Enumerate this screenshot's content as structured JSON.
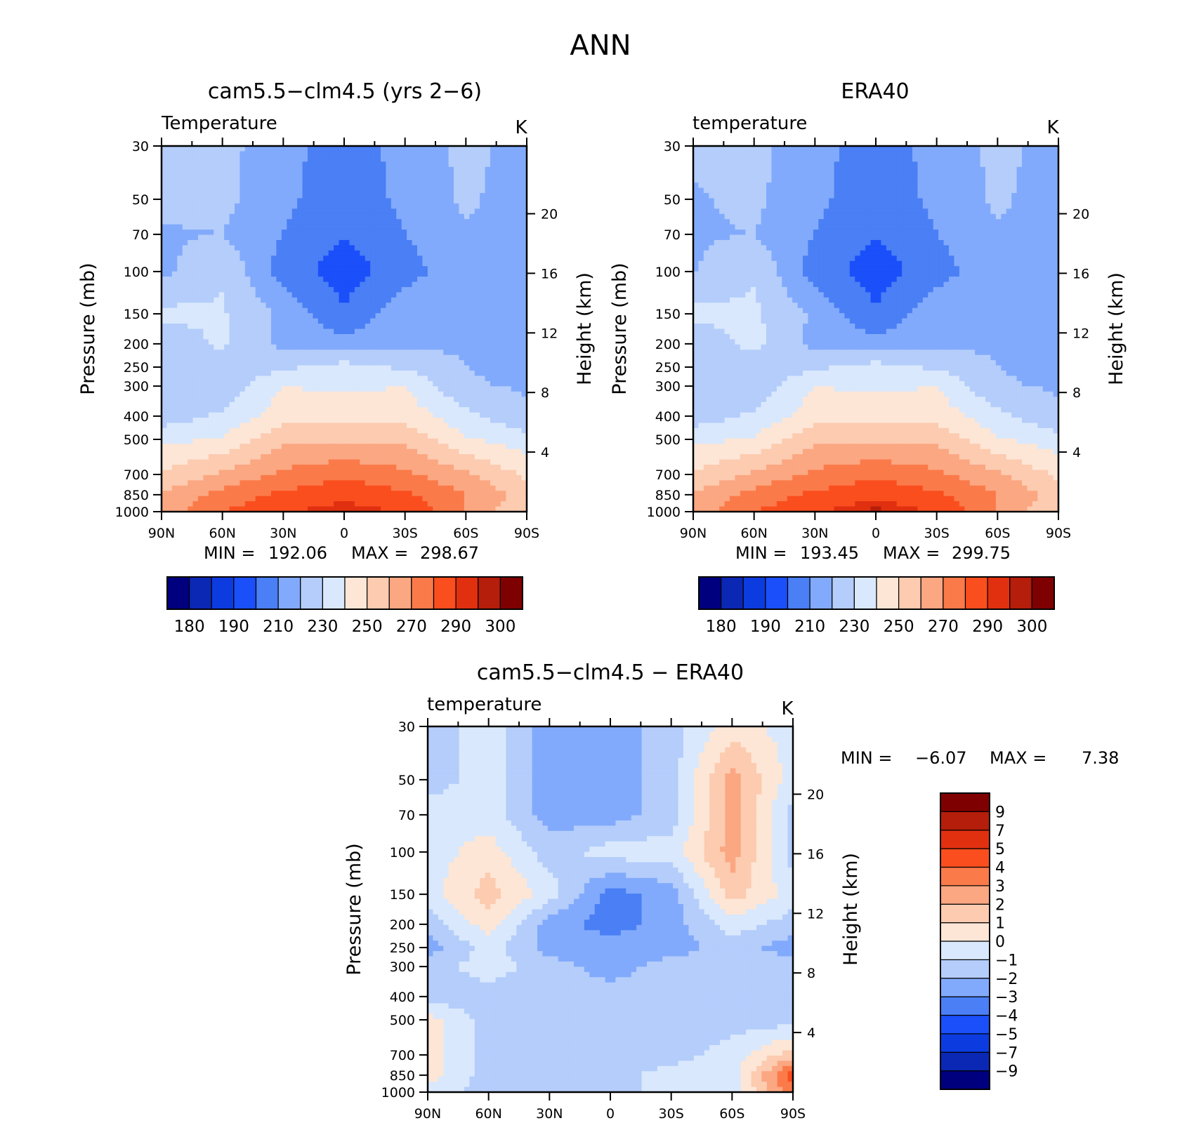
{
  "figure": {
    "title": "ANN",
    "y_label_left": "Pressure (mb)",
    "y_label_right": "Height (km)",
    "pressure_ticks": [
      "30",
      "50",
      "70",
      "100",
      "150",
      "200",
      "250",
      "300",
      "400",
      "500",
      "700",
      "850",
      "1000"
    ],
    "height_ticks": [
      "20",
      "16",
      "12",
      "8",
      "4"
    ],
    "lat_ticks": [
      "90N",
      "60N",
      "30N",
      "0",
      "30S",
      "60S",
      "90S"
    ]
  },
  "panels": {
    "model": {
      "title": "cam5.5−clm4.5 (yrs 2−6)",
      "variable": "Temperature",
      "units": "K",
      "min_label": "MIN =",
      "min_value": "192.06",
      "max_label": "MAX =",
      "max_value": "298.67"
    },
    "obs": {
      "title": "ERA40",
      "variable": "temperature",
      "units": "K",
      "min_label": "MIN =",
      "min_value": "193.45",
      "max_label": "MAX =",
      "max_value": "299.75"
    },
    "diff": {
      "title": "cam5.5−clm4.5 − ERA40",
      "variable": "temperature",
      "units": "K",
      "min_label": "MIN =",
      "min_value": "−6.07",
      "max_label": "MAX =",
      "max_value": "7.38"
    }
  },
  "colorbars": {
    "temperature": {
      "colors": [
        "#00007f",
        "#0a28b4",
        "#0c3ce0",
        "#1a4ffa",
        "#4a7ff5",
        "#82aafc",
        "#b4cdfb",
        "#d9e8fc",
        "#fde6d6",
        "#fccbb0",
        "#fba782",
        "#fb7a4a",
        "#fa4e1e",
        "#e03010",
        "#b41e0a",
        "#7f0000"
      ],
      "labels": [
        "180",
        "190",
        "210",
        "230",
        "250",
        "270",
        "290",
        "300"
      ]
    },
    "difference": {
      "colors": [
        "#00007f",
        "#0a28b4",
        "#0c3ce0",
        "#1a4ffa",
        "#4a7ff5",
        "#82aafc",
        "#b4cdfb",
        "#d9e8fc",
        "#fde6d6",
        "#fccbb0",
        "#fba782",
        "#fb7a4a",
        "#fa4e1e",
        "#e03010",
        "#b41e0a",
        "#7f0000"
      ],
      "labels": [
        "−9",
        "−7",
        "−5",
        "−4",
        "−3",
        "−2",
        "−1",
        "0",
        "1",
        "2",
        "3",
        "4",
        "5",
        "7",
        "9"
      ]
    }
  },
  "chart_data": [
    {
      "type": "heatmap",
      "title": "cam5.5−clm4.5 (yrs 2−6)",
      "subtitle": "Temperature",
      "units": "K",
      "x": [
        90,
        60,
        30,
        0,
        -30,
        -60,
        -90
      ],
      "xlabel_ticks": [
        "90N",
        "60N",
        "30N",
        "0",
        "30S",
        "60S",
        "90S"
      ],
      "y": [
        30,
        50,
        70,
        100,
        150,
        200,
        250,
        300,
        400,
        500,
        700,
        850,
        1000
      ],
      "ylabel": "Pressure (mb)",
      "y2label": "Height (km)",
      "y2_ticks": [
        20,
        16,
        12,
        8,
        4
      ],
      "z_rows": [
        [
          228,
          224,
          212,
          207,
          212,
          223,
          216
        ],
        [
          222,
          223,
          212,
          205,
          212,
          222,
          214
        ],
        [
          219,
          220,
          210,
          200,
          210,
          219,
          213
        ],
        [
          217,
          229,
          205,
          195,
          205,
          218,
          213
        ],
        [
          233,
          231,
          218,
          201,
          218,
          220,
          214
        ],
        [
          223,
          232,
          217,
          214,
          217,
          219,
          214
        ],
        [
          221,
          224,
          228,
          234,
          228,
          220,
          218
        ],
        [
          221,
          222,
          240,
          238,
          240,
          221,
          219
        ],
        [
          224,
          232,
          246,
          248,
          246,
          233,
          222
        ],
        [
          237,
          241,
          258,
          258,
          258,
          241,
          234
        ],
        [
          251,
          262,
          272,
          278,
          272,
          262,
          248
        ],
        [
          261,
          274,
          282,
          287,
          282,
          270,
          255
        ],
        [
          264,
          280,
          288,
          295,
          288,
          270,
          250
        ]
      ],
      "min": 192.06,
      "max": 298.67
    },
    {
      "type": "heatmap",
      "title": "ERA40",
      "subtitle": "temperature",
      "units": "K",
      "x": [
        90,
        60,
        30,
        0,
        -30,
        -60,
        -90
      ],
      "xlabel_ticks": [
        "90N",
        "60N",
        "30N",
        "0",
        "30S",
        "60S",
        "90S"
      ],
      "y": [
        30,
        50,
        70,
        100,
        150,
        200,
        250,
        300,
        400,
        500,
        700,
        850,
        1000
      ],
      "ylabel": "Pressure (mb)",
      "y2label": "Height (km)",
      "y2_ticks": [
        20,
        16,
        12,
        8,
        4
      ],
      "z_rows": [
        [
          222,
          224,
          212,
          207,
          212,
          223,
          216
        ],
        [
          219,
          222,
          212,
          205,
          212,
          222,
          214
        ],
        [
          219,
          220,
          210,
          200,
          210,
          219,
          213
        ],
        [
          219,
          229,
          205,
          195,
          205,
          218,
          213
        ],
        [
          233,
          232,
          218,
          201,
          218,
          220,
          214
        ],
        [
          223,
          233,
          217,
          214,
          217,
          219,
          214
        ],
        [
          221,
          224,
          228,
          234,
          228,
          220,
          218
        ],
        [
          221,
          222,
          240,
          238,
          240,
          221,
          219
        ],
        [
          224,
          232,
          246,
          248,
          246,
          233,
          222
        ],
        [
          237,
          241,
          258,
          258,
          258,
          241,
          234
        ],
        [
          251,
          262,
          272,
          278,
          272,
          262,
          248
        ],
        [
          261,
          274,
          282,
          287,
          282,
          270,
          255
        ],
        [
          264,
          280,
          288,
          297,
          288,
          270,
          250
        ]
      ],
      "min": 193.45,
      "max": 299.75
    },
    {
      "type": "heatmap",
      "title": "cam5.5−clm4.5 − ERA40",
      "subtitle": "temperature",
      "units": "K",
      "x": [
        90,
        60,
        30,
        0,
        -30,
        -60,
        -90
      ],
      "xlabel_ticks": [
        "90N",
        "60N",
        "30N",
        "0",
        "30S",
        "60S",
        "90S"
      ],
      "y": [
        30,
        50,
        70,
        100,
        150,
        200,
        250,
        300,
        400,
        500,
        700,
        850,
        1000
      ],
      "ylabel": "Pressure (mb)",
      "y2label": "Height (km)",
      "y2_ticks": [
        20,
        16,
        12,
        8,
        4
      ],
      "z_rows": [
        [
          -1.5,
          -0.5,
          -2.5,
          -2.5,
          -1.5,
          0.5,
          -0.5
        ],
        [
          -1.5,
          -0.5,
          -2.5,
          -2.5,
          -1.5,
          2.5,
          -0.5
        ],
        [
          -0.5,
          -0.5,
          -2.5,
          -2.5,
          -1.5,
          2.5,
          -1.5
        ],
        [
          -0.5,
          0.5,
          -1.5,
          -0.5,
          -0.5,
          2.5,
          -1.5
        ],
        [
          -0.5,
          1.5,
          -0.5,
          -3.5,
          -2.5,
          1.5,
          -0.5
        ],
        [
          -1.5,
          0.5,
          -2.5,
          -3.5,
          -2.5,
          -0.5,
          -1.5
        ],
        [
          -2.5,
          -0.5,
          -2.5,
          -2.5,
          -2.5,
          -1.5,
          -2.5
        ],
        [
          -1.5,
          -0.5,
          -1.5,
          -2.5,
          -1.5,
          -1.5,
          -1.5
        ],
        [
          -1.5,
          -1.5,
          -1.5,
          -1.5,
          -1.5,
          -1.5,
          -1.5
        ],
        [
          0.5,
          -1.5,
          -1.5,
          -1.5,
          -1.5,
          -1.5,
          -1.5
        ],
        [
          0.5,
          -1.5,
          -1.5,
          -1.5,
          -1.5,
          -0.5,
          1.5
        ],
        [
          0.5,
          -1.5,
          -1.5,
          -1.5,
          -0.5,
          -0.5,
          4.5
        ],
        [
          -0.5,
          -1.5,
          -1.5,
          -1.5,
          -0.5,
          -0.5,
          3.5
        ]
      ],
      "min": -6.07,
      "max": 7.38
    }
  ]
}
